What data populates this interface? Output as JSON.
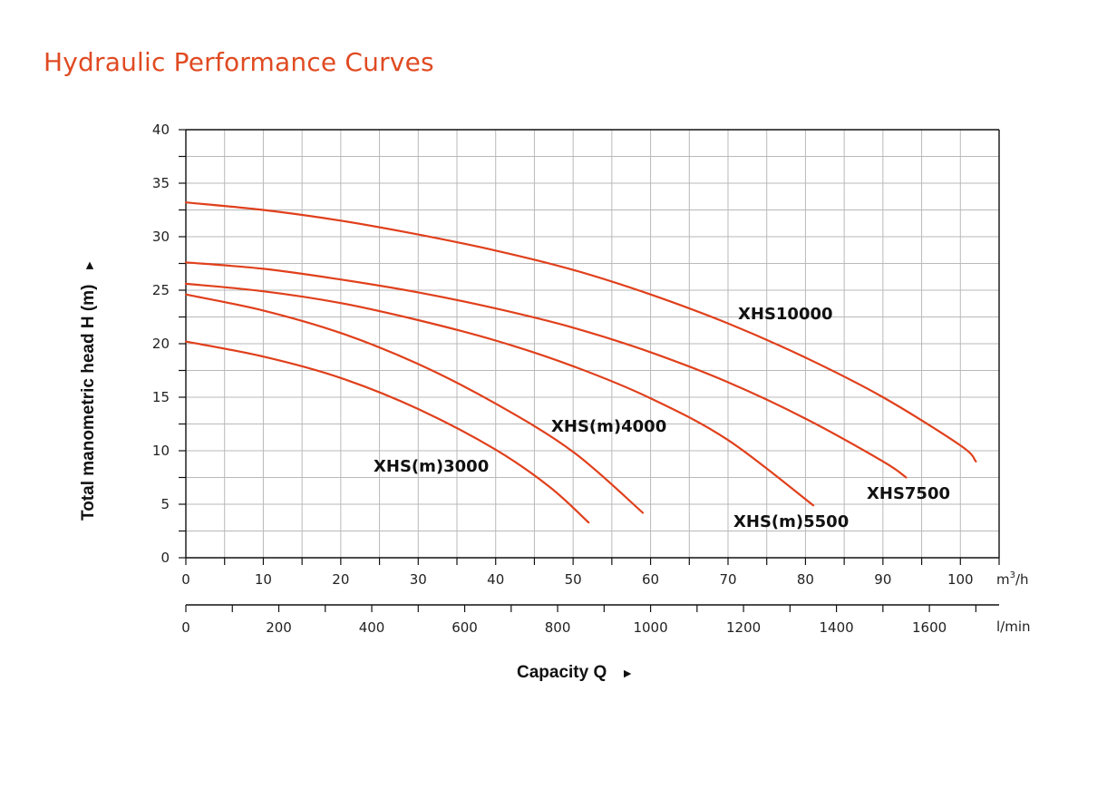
{
  "page": {
    "title": "Hydraulic Performance Curves"
  },
  "colors": {
    "title": "#e04a22",
    "curve": "#e0401c",
    "grid": "#b9b9b9",
    "axis": "#111111"
  },
  "chart_data": {
    "type": "line",
    "title": "Hydraulic Performance Curves",
    "xlabel": "Capacity Q",
    "xlabel_arrow": "►",
    "ylabel": "Total manometric head H (m)",
    "ylabel_arrow": "►",
    "xlim": [
      0,
      105
    ],
    "ylim": [
      0,
      40
    ],
    "x_unit": "m³/h",
    "x_unit_base": "m",
    "x_unit_sup": "3",
    "x_unit_tail": "/h",
    "x2_unit": "l/min",
    "x_ticks": [
      0,
      10,
      20,
      30,
      40,
      50,
      60,
      70,
      80,
      90,
      100
    ],
    "x_minor_step": 5,
    "y_ticks": [
      0,
      5,
      10,
      15,
      20,
      25,
      30,
      35,
      40
    ],
    "y_minor_step": 2.5,
    "x2_ticks": [
      0,
      200,
      400,
      600,
      800,
      1000,
      1200,
      1400,
      1600
    ],
    "x2_factor": 0.06,
    "grid": true,
    "series": [
      {
        "name": "XHS10000",
        "label": "XHS10000",
        "x": [
          0,
          10,
          20,
          30,
          40,
          50,
          60,
          70,
          80,
          90,
          100,
          102
        ],
        "y": [
          33.2,
          32.5,
          31.5,
          30.2,
          28.7,
          26.9,
          24.6,
          21.9,
          18.7,
          15.0,
          10.5,
          9.0
        ]
      },
      {
        "name": "XHS7500",
        "label": "XHS7500",
        "x": [
          0,
          10,
          20,
          30,
          40,
          50,
          60,
          70,
          80,
          90,
          93
        ],
        "y": [
          27.6,
          27.0,
          26.0,
          24.8,
          23.3,
          21.5,
          19.2,
          16.4,
          13.0,
          9.0,
          7.5
        ]
      },
      {
        "name": "XHS(m)5500",
        "label": "XHS(m)5500",
        "x": [
          0,
          10,
          20,
          30,
          40,
          50,
          60,
          70,
          81
        ],
        "y": [
          25.6,
          24.9,
          23.8,
          22.2,
          20.3,
          17.9,
          14.9,
          11.0,
          4.9
        ]
      },
      {
        "name": "XHS(m)4000",
        "label": "XHS(m)4000",
        "x": [
          0,
          10,
          20,
          30,
          40,
          50,
          59
        ],
        "y": [
          24.6,
          23.1,
          21.0,
          18.1,
          14.4,
          9.9,
          4.2
        ]
      },
      {
        "name": "XHS(m)3000",
        "label": "XHS(m)3000",
        "x": [
          0,
          10,
          20,
          30,
          40,
          47,
          52
        ],
        "y": [
          20.2,
          18.8,
          16.8,
          13.9,
          10.1,
          6.6,
          3.3
        ]
      }
    ]
  }
}
